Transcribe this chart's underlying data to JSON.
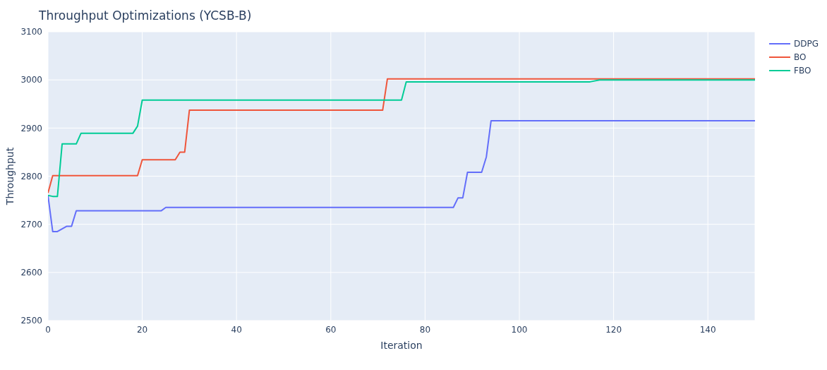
{
  "chart_data": {
    "type": "line",
    "title": "Throughput Optimizations (YCSB-B)",
    "xlabel": "Iteration",
    "ylabel": "Throughput",
    "xlim": [
      0,
      150
    ],
    "xticks": [
      0,
      20,
      40,
      60,
      80,
      100,
      120,
      140
    ],
    "ylim": [
      2500,
      3100
    ],
    "yticks": [
      2500,
      2600,
      2700,
      2800,
      2900,
      3000,
      3100
    ],
    "grid": true,
    "legend": "top right",
    "marker": "none",
    "line_style": "solid",
    "series": [
      {
        "name": "DDPG",
        "color": "#636efa",
        "x": [
          0,
          1,
          2,
          4,
          5,
          6,
          24,
          25,
          86,
          87,
          88,
          89,
          92,
          93,
          94,
          150
        ],
        "values": [
          2760,
          2685,
          2685,
          2696,
          2696,
          2728,
          2728,
          2735,
          2735,
          2755,
          2755,
          2808,
          2808,
          2840,
          2915,
          2915
        ]
      },
      {
        "name": "BO",
        "color": "#ef553b",
        "x": [
          0,
          1,
          19,
          20,
          27,
          28,
          29,
          30,
          71,
          72,
          150
        ],
        "values": [
          2765,
          2801,
          2801,
          2834,
          2834,
          2850,
          2850,
          2937,
          2937,
          3002,
          3002
        ]
      },
      {
        "name": "FBO",
        "color": "#00cc96",
        "x": [
          0,
          1,
          2,
          3,
          6,
          7,
          18,
          19,
          20,
          75,
          76,
          115,
          117,
          150
        ],
        "values": [
          2760,
          2758,
          2758,
          2867,
          2867,
          2889,
          2889,
          2904,
          2958,
          2958,
          2996,
          2996,
          3000,
          3000
        ]
      }
    ]
  }
}
